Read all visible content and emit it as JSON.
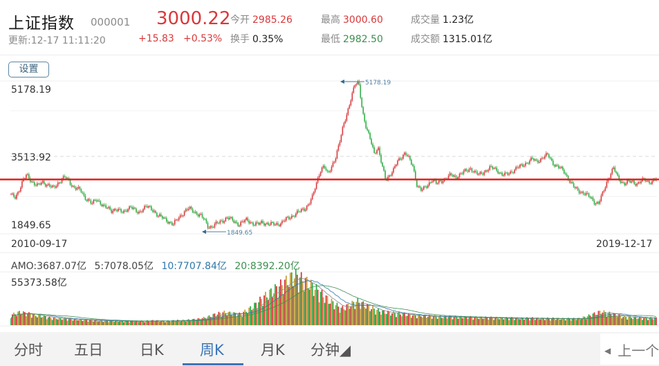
{
  "header": {
    "name": "上证指数",
    "code": "000001",
    "updated": "更新:12-17 11:11:20",
    "price": "3000.22",
    "change": "+15.83",
    "change_pct": "+0.53%",
    "stats": {
      "open_label": "今开",
      "open": "2985.26",
      "turnover_label": "换手",
      "turnover": "0.35%",
      "high_label": "最高",
      "high": "3000.60",
      "low_label": "最低",
      "low": "2982.50",
      "volume_label": "成交量",
      "volume": "1.23亿",
      "amount_label": "成交额",
      "amount": "1315.01亿"
    }
  },
  "settings_button": "设置",
  "kline": {
    "y_max_label": "5178.19",
    "y_mid_label": "3513.92",
    "y_min_label": "1849.65",
    "x_start": "2010-09-17",
    "x_end": "2019-12-17",
    "max_marker": "5178.19",
    "min_marker": "1849.65",
    "current_line_value": 3000.22
  },
  "volume": {
    "amo": "AMO:3687.07亿",
    "ma5": "5:7078.05亿",
    "ma10": "10:7707.84亿",
    "ma20": "20:8392.20亿",
    "max_label": "55373.58亿"
  },
  "tabs": [
    {
      "label": "分时",
      "active": false
    },
    {
      "label": "五日",
      "active": false
    },
    {
      "label": "日K",
      "active": false
    },
    {
      "label": "周K",
      "active": true
    },
    {
      "label": "月K",
      "active": false
    },
    {
      "label": "分钟◢",
      "active": false
    }
  ],
  "prev_button": "上一个",
  "colors": {
    "up": "#d9383a",
    "down": "#2fae45",
    "current_line": "#e02020",
    "accent": "#3a74b8"
  },
  "chart_data": {
    "type": "candlestick",
    "title": "上证指数 周K",
    "x_range": [
      "2010-09-17",
      "2019-12-17"
    ],
    "ylim": [
      1849.65,
      5178.19
    ],
    "y_ticks": [
      5178.19,
      3513.92,
      1849.65
    ],
    "current": 3000.22,
    "close_series": [
      2650,
      2600,
      2750,
      2950,
      3100,
      3000,
      2900,
      2850,
      2950,
      2900,
      2850,
      2800,
      2900,
      3000,
      3050,
      2950,
      2850,
      2800,
      2750,
      2600,
      2550,
      2450,
      2550,
      2500,
      2400,
      2350,
      2300,
      2350,
      2300,
      2250,
      2350,
      2400,
      2300,
      2250,
      2350,
      2400,
      2350,
      2300,
      2200,
      2150,
      2100,
      2050,
      2000,
      2100,
      2200,
      2300,
      2350,
      2300,
      2250,
      2200,
      2100,
      1949,
      1950,
      2000,
      2050,
      2100,
      2150,
      2100,
      2050,
      2000,
      2050,
      2100,
      2050,
      2000,
      2000,
      2050,
      2020,
      2000,
      2000,
      2010,
      2030,
      2100,
      2150,
      2200,
      2250,
      2300,
      2350,
      2450,
      2600,
      2900,
      3200,
      3300,
      3100,
      3300,
      3500,
      3800,
      4200,
      4500,
      4800,
      5100,
      5178,
      4500,
      4100,
      3900,
      3600,
      3700,
      3300,
      3000,
      3100,
      3200,
      3400,
      3500,
      3600,
      3450,
      3300,
      2900,
      2750,
      2800,
      2900,
      3000,
      2900,
      2950,
      3000,
      3050,
      3100,
      3050,
      3100,
      3150,
      3200,
      3250,
      3150,
      3100,
      3150,
      3200,
      3250,
      3250,
      3200,
      3100,
      3100,
      3150,
      3200,
      3250,
      3300,
      3350,
      3400,
      3450,
      3400,
      3450,
      3500,
      3550,
      3400,
      3300,
      3250,
      3200,
      3050,
      2900,
      2800,
      2750,
      2700,
      2650,
      2600,
      2500,
      2450,
      2650,
      2900,
      3100,
      3250,
      3050,
      2950,
      2900,
      2950,
      2950,
      2900,
      2950,
      3000,
      2950,
      2950,
      3000
    ],
    "volume_series": [
      11000,
      14000,
      13000,
      11000,
      10000,
      8000,
      7500,
      7000,
      6500,
      6000,
      5500,
      5000,
      4800,
      4600,
      4500,
      4400,
      4500,
      4700,
      5000,
      4800,
      4600,
      5200,
      5500,
      6000,
      7000,
      9000,
      12000,
      14000,
      13000,
      12000,
      16000,
      22000,
      30000,
      36000,
      42000,
      48000,
      55000,
      50000,
      45000,
      38000,
      30000,
      24000,
      18000,
      22000,
      26000,
      22000,
      18000,
      15000,
      14000,
      13000,
      12000,
      11000,
      10500,
      10000,
      9500,
      9000,
      9500,
      9000,
      8800,
      8600,
      8400,
      8200,
      8000,
      7800,
      7700,
      7600,
      7700,
      7500,
      7400,
      7300,
      7200,
      7100,
      7000,
      9000,
      12000,
      15000,
      13000,
      11000,
      9000,
      8500,
      8000,
      7800,
      7700
    ]
  }
}
